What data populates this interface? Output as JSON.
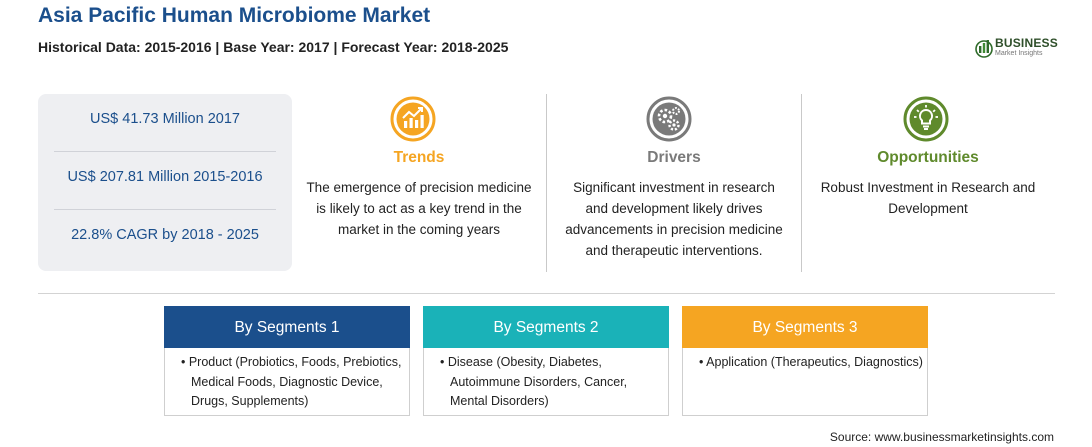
{
  "header": {
    "title": "Asia Pacific Human Microbiome Market",
    "subtitle": "Historical Data: 2015-2016 | Base Year: 2017 | Forecast Year: 2018-2025"
  },
  "logo": {
    "name": "BUSINESS",
    "tagline": "Market Insights",
    "icon": "bar-chart-globe-icon"
  },
  "stats": [
    "US$ 41.73 Million 2017",
    "US$ 207.81 Million 2015-2016",
    "22.8% CAGR by 2018 - 2025"
  ],
  "columns": {
    "trends": {
      "heading": "Trends",
      "icon": "trend-up-chart-icon",
      "color": "#f5a522",
      "lines": [
        "The emergence of precision medicine",
        "is likely to act as a key trend in the",
        "market in the coming years"
      ]
    },
    "drivers": {
      "heading": "Drivers",
      "icon": "gears-icon",
      "color": "#7a7a7a",
      "lines": [
        "Significant investment in research",
        "and development likely drives",
        "advancements in precision medicine",
        "and therapeutic interventions."
      ]
    },
    "opportunities": {
      "heading": "Opportunities",
      "icon": "lightbulb-icon",
      "color": "#5f8a2c",
      "lines": [
        "Robust Investment in Research and",
        "Development"
      ]
    }
  },
  "segments": [
    {
      "heading": "By Segments 1",
      "color": "#1b4f8c",
      "lines": [
        "• Product (Probiotics, Foods, Prebiotics,",
        "Medical Foods, Diagnostic Device,",
        "Drugs, Supplements)"
      ]
    },
    {
      "heading": "By Segments 2",
      "color": "#1ab2b8",
      "lines": [
        "• Disease (Obesity, Diabetes,",
        "Autoimmune Disorders, Cancer,",
        "Mental Disorders)"
      ]
    },
    {
      "heading": "By Segments 3",
      "color": "#f5a522",
      "lines": [
        "• Application (Therapeutics, Diagnostics)"
      ]
    }
  ],
  "source": "Source: www.businessmarketinsights.com"
}
